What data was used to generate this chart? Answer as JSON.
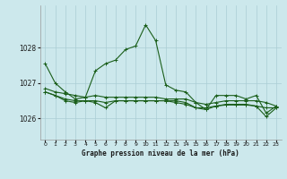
{
  "bg_color": "#cce8ec",
  "grid_color": "#aacdd4",
  "line_color": "#1a5e1a",
  "title": "Graphe pression niveau de la mer (hPa)",
  "xlim": [
    -0.5,
    23.5
  ],
  "ylim": [
    1025.4,
    1029.2
  ],
  "yticks": [
    1026,
    1027,
    1028
  ],
  "xticks": [
    0,
    1,
    2,
    3,
    4,
    5,
    6,
    7,
    8,
    9,
    10,
    11,
    12,
    13,
    14,
    15,
    16,
    17,
    18,
    19,
    20,
    21,
    22,
    23
  ],
  "line1": [
    1027.55,
    1027.0,
    1026.75,
    1026.55,
    1026.6,
    1027.35,
    1027.55,
    1027.65,
    1027.95,
    1028.05,
    1028.65,
    1028.2,
    1026.95,
    1026.8,
    1026.75,
    1026.45,
    1026.25,
    1026.65,
    1026.65,
    1026.65,
    1026.55,
    1026.65,
    1026.15,
    1026.35
  ],
  "line2": [
    1026.85,
    1026.75,
    1026.7,
    1026.65,
    1026.6,
    1026.65,
    1026.6,
    1026.6,
    1026.6,
    1026.6,
    1026.6,
    1026.6,
    1026.55,
    1026.55,
    1026.55,
    1026.45,
    1026.4,
    1026.45,
    1026.5,
    1026.5,
    1026.5,
    1026.5,
    1026.45,
    1026.35
  ],
  "line3": [
    1026.75,
    1026.65,
    1026.55,
    1026.5,
    1026.5,
    1026.5,
    1026.45,
    1026.5,
    1026.5,
    1026.5,
    1026.5,
    1026.5,
    1026.5,
    1026.45,
    1026.4,
    1026.3,
    1026.3,
    1026.35,
    1026.4,
    1026.4,
    1026.4,
    1026.35,
    1026.3,
    1026.3
  ],
  "line4": [
    1026.75,
    1026.65,
    1026.5,
    1026.45,
    1026.5,
    1026.45,
    1026.3,
    1026.5,
    1026.5,
    1026.5,
    1026.5,
    1026.5,
    1026.5,
    1026.5,
    1026.45,
    1026.3,
    1026.25,
    1026.35,
    1026.38,
    1026.38,
    1026.38,
    1026.35,
    1026.05,
    1026.3
  ]
}
